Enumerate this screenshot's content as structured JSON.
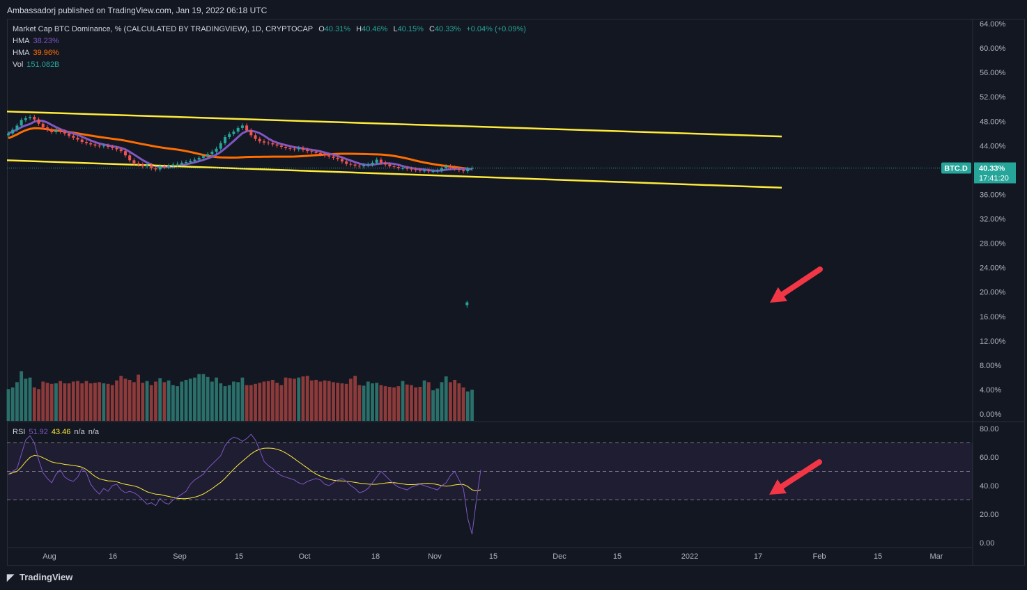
{
  "publisher": "Ambassadorj published on TradingView.com, Jan 19, 2022 06:18 UTC",
  "brand": "TradingView",
  "legend": {
    "title": "Market Cap BTC Dominance, % (CALCULATED BY TRADINGVIEW), 1D, CRYPTOCAP",
    "o_label": "O",
    "o": "40.31%",
    "h_label": "H",
    "h": "40.46%",
    "l_label": "L",
    "l": "40.15%",
    "c_label": "C",
    "c": "40.33%",
    "change": "+0.04% (+0.09%)",
    "hma1_label": "HMA",
    "hma1": "38.23%",
    "hma2_label": "HMA",
    "hma2": "39.96%",
    "vol_label": "Vol",
    "vol": "151.082B"
  },
  "rsi_legend": {
    "label": "RSI",
    "v1": "51.92",
    "v2": "43.46",
    "v3": "n/a",
    "v4": "n/a"
  },
  "price_tag": {
    "symbol": "BTC.D",
    "value": "40.33%",
    "countdown": "17:41:20"
  },
  "colors": {
    "up": "#26a69a",
    "down": "#ef5350",
    "hma_fast": "#7e57c2",
    "hma_slow": "#ff6d00",
    "channel": "#ffeb3b",
    "rsi": "#7e57c2",
    "rsi_ma": "#ffeb3b",
    "arrow": "#f23645",
    "vol_up": "#2a6f69",
    "vol_down": "#8c3a3a"
  },
  "chart_data": {
    "type": "candlestick",
    "x_ticks": [
      "Aug",
      "16",
      "Sep",
      "15",
      "Oct",
      "18",
      "Nov",
      "15",
      "Dec",
      "15",
      "2022",
      "17",
      "Feb",
      "15",
      "Mar"
    ],
    "price_axis": [
      "64.00%",
      "60.00%",
      "56.00%",
      "52.00%",
      "48.00%",
      "44.00%",
      "40.00%",
      "36.00%",
      "32.00%",
      "28.00%",
      "24.00%",
      "20.00%",
      "16.00%",
      "12.00%",
      "8.00%",
      "4.00%",
      "0.00%"
    ],
    "price_range": [
      0,
      64
    ],
    "rsi_axis": [
      "80.00",
      "60.00",
      "40.00",
      "20.00",
      "0.00"
    ],
    "rsi_range": [
      0,
      80
    ],
    "rsi_levels": [
      70,
      50,
      30
    ],
    "last_close": 40.33,
    "outlier_print": 18.0,
    "channel_upper": {
      "start": 49.6,
      "end": 45.5
    },
    "channel_lower": {
      "start": 41.6,
      "end": 37.1
    },
    "close_series": [
      46.0,
      46.6,
      47.3,
      48.2,
      48.5,
      48.7,
      48.3,
      47.6,
      47.0,
      46.6,
      46.2,
      46.5,
      46.3,
      46.0,
      45.6,
      45.3,
      45.0,
      44.6,
      44.4,
      44.2,
      44.0,
      43.9,
      44.0,
      43.8,
      43.6,
      43.4,
      43.1,
      42.4,
      41.6,
      41.1,
      40.9,
      40.6,
      40.8,
      40.3,
      40.1,
      40.6,
      40.5,
      40.7,
      40.9,
      41.0,
      41.2,
      41.3,
      41.5,
      41.7,
      42.0,
      42.3,
      42.6,
      43.0,
      43.5,
      44.4,
      45.4,
      45.9,
      46.3,
      46.9,
      47.3,
      46.5,
      45.7,
      45.1,
      44.7,
      44.5,
      44.4,
      44.2,
      44.0,
      43.8,
      43.6,
      43.5,
      43.4,
      43.6,
      43.3,
      43.1,
      43.0,
      42.8,
      42.6,
      42.4,
      42.2,
      42.0,
      41.8,
      41.4,
      41.0,
      40.9,
      40.7,
      40.6,
      40.8,
      40.9,
      41.2,
      41.7,
      41.2,
      40.9,
      40.6,
      40.5,
      40.3,
      40.3,
      40.2,
      40.1,
      40.0,
      39.9,
      39.9,
      39.8,
      39.8,
      39.9,
      40.3,
      40.6,
      40.4,
      40.2,
      40.0,
      39.8,
      40.2,
      40.3
    ],
    "volume_series": [
      4.3,
      4.6,
      5.5,
      7.4,
      6.1,
      6.3,
      4.6,
      4.3,
      5.6,
      5.4,
      5.2,
      5.3,
      5.7,
      5.3,
      5.3,
      5.6,
      5.7,
      5.3,
      5.7,
      5.3,
      5.4,
      5.5,
      5.3,
      5.2,
      5.0,
      5.8,
      6.6,
      6.1,
      5.9,
      5.5,
      6.8,
      5.4,
      5.7,
      5.0,
      5.6,
      6.2,
      5.5,
      5.8,
      5.0,
      4.8,
      5.6,
      5.9,
      6.1,
      6.3,
      6.9,
      6.9,
      6.4,
      5.6,
      6.3,
      5.3,
      4.8,
      5.0,
      5.6,
      5.5,
      6.3,
      5.0,
      5.0,
      5.2,
      5.4,
      5.6,
      5.7,
      5.9,
      5.4,
      5.0,
      6.3,
      6.2,
      6.1,
      6.3,
      6.5,
      6.6,
      5.8,
      5.9,
      5.6,
      5.8,
      5.7,
      5.5,
      5.4,
      5.3,
      5.2,
      6.1,
      6.6,
      5.0,
      4.9,
      5.6,
      5.3,
      5.4,
      5.0,
      4.8,
      4.7,
      4.6,
      4.8,
      5.7,
      5.1,
      5.0,
      4.6,
      4.7,
      5.8,
      5.5,
      4.1,
      4.4,
      5.5,
      6.5,
      5.5,
      5.9,
      5.3,
      4.6,
      3.9,
      4.2
    ],
    "rsi_series": [
      48,
      50,
      52,
      62,
      72,
      75,
      70,
      58,
      49,
      45,
      42,
      48,
      51,
      46,
      44,
      43,
      46,
      52,
      49,
      41,
      37,
      34,
      38,
      36,
      40,
      41,
      37,
      35,
      36,
      35,
      33,
      30,
      27,
      28,
      26,
      31,
      28,
      27,
      30,
      32,
      34,
      36,
      41,
      44,
      46,
      48,
      52,
      55,
      58,
      61,
      68,
      72,
      74,
      73,
      71,
      73,
      76,
      72,
      65,
      57,
      54,
      52,
      49,
      47,
      46,
      45,
      44,
      42,
      41,
      43,
      44,
      45,
      44,
      41,
      40,
      42,
      44,
      45,
      43,
      40,
      38,
      35,
      36,
      38,
      42,
      46,
      50,
      47,
      44,
      41,
      39,
      38,
      37,
      39,
      40,
      41,
      40,
      39,
      38,
      37,
      40,
      42,
      47,
      50,
      44,
      38,
      17,
      6,
      30,
      51
    ]
  }
}
